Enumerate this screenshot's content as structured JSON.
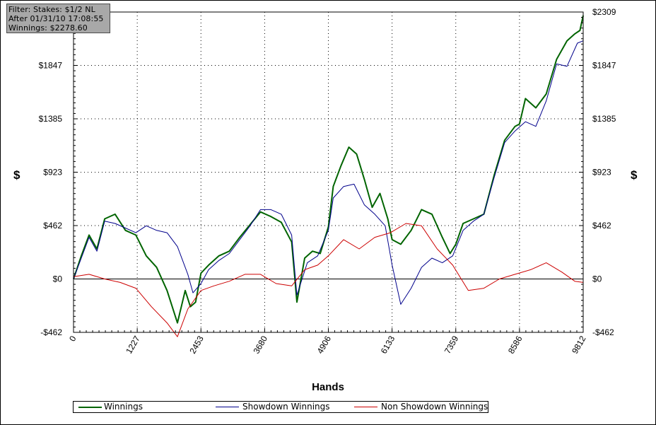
{
  "filter_box": {
    "line1": "Filter: Stakes: $1/2 NL",
    "line2": "After 01/31/10 17:08:55",
    "line3": "Winnings: $2278.60"
  },
  "chart_data": {
    "type": "line",
    "title": "",
    "xlabel": "Hands",
    "ylabel": "$",
    "xlim": [
      0,
      9812
    ],
    "ylim": [
      -462,
      2309
    ],
    "x_ticks": [
      0,
      1227,
      2453,
      3680,
      4906,
      6133,
      7359,
      8586,
      9812
    ],
    "x_tick_labels": [
      "0",
      "1227",
      "2453",
      "3680",
      "4906",
      "6133",
      "7359",
      "8586",
      "9812"
    ],
    "y_ticks": [
      -462,
      0,
      462,
      923,
      1385,
      1847,
      2309
    ],
    "y_tick_labels": [
      "-$462",
      "$0",
      "$462",
      "$923",
      "$1385",
      "$1847",
      "$2309"
    ],
    "grid": true,
    "legend_position": "bottom",
    "series": [
      {
        "name": "Winnings",
        "color": "#006400",
        "points": [
          [
            0,
            0
          ],
          [
            150,
            200
          ],
          [
            300,
            380
          ],
          [
            450,
            260
          ],
          [
            600,
            520
          ],
          [
            800,
            560
          ],
          [
            1000,
            420
          ],
          [
            1200,
            380
          ],
          [
            1400,
            200
          ],
          [
            1600,
            100
          ],
          [
            1800,
            -100
          ],
          [
            2000,
            -380
          ],
          [
            2150,
            -100
          ],
          [
            2250,
            -240
          ],
          [
            2350,
            -200
          ],
          [
            2453,
            50
          ],
          [
            2600,
            120
          ],
          [
            2800,
            200
          ],
          [
            3000,
            240
          ],
          [
            3200,
            360
          ],
          [
            3400,
            470
          ],
          [
            3600,
            580
          ],
          [
            3800,
            540
          ],
          [
            4000,
            490
          ],
          [
            4200,
            320
          ],
          [
            4300,
            -200
          ],
          [
            4450,
            180
          ],
          [
            4600,
            240
          ],
          [
            4750,
            220
          ],
          [
            4906,
            450
          ],
          [
            5000,
            800
          ],
          [
            5150,
            980
          ],
          [
            5300,
            1140
          ],
          [
            5450,
            1080
          ],
          [
            5600,
            860
          ],
          [
            5750,
            620
          ],
          [
            5900,
            740
          ],
          [
            6050,
            520
          ],
          [
            6133,
            340
          ],
          [
            6300,
            300
          ],
          [
            6500,
            420
          ],
          [
            6700,
            600
          ],
          [
            6900,
            560
          ],
          [
            7100,
            360
          ],
          [
            7250,
            220
          ],
          [
            7359,
            300
          ],
          [
            7500,
            480
          ],
          [
            7700,
            520
          ],
          [
            7900,
            560
          ],
          [
            8100,
            900
          ],
          [
            8300,
            1200
          ],
          [
            8500,
            1320
          ],
          [
            8586,
            1340
          ],
          [
            8700,
            1560
          ],
          [
            8900,
            1480
          ],
          [
            9100,
            1600
          ],
          [
            9300,
            1900
          ],
          [
            9500,
            2060
          ],
          [
            9650,
            2120
          ],
          [
            9750,
            2150
          ],
          [
            9812,
            2278.6
          ]
        ]
      },
      {
        "name": "Showdown Winnings",
        "color": "#00008b",
        "points": [
          [
            0,
            0
          ],
          [
            150,
            180
          ],
          [
            300,
            360
          ],
          [
            450,
            240
          ],
          [
            600,
            500
          ],
          [
            800,
            480
          ],
          [
            1000,
            440
          ],
          [
            1200,
            400
          ],
          [
            1400,
            460
          ],
          [
            1600,
            420
          ],
          [
            1800,
            400
          ],
          [
            2000,
            280
          ],
          [
            2200,
            40
          ],
          [
            2300,
            -120
          ],
          [
            2453,
            -40
          ],
          [
            2600,
            80
          ],
          [
            2800,
            160
          ],
          [
            3000,
            220
          ],
          [
            3200,
            340
          ],
          [
            3400,
            460
          ],
          [
            3600,
            600
          ],
          [
            3800,
            600
          ],
          [
            4000,
            560
          ],
          [
            4200,
            380
          ],
          [
            4300,
            -140
          ],
          [
            4500,
            140
          ],
          [
            4700,
            200
          ],
          [
            4906,
            420
          ],
          [
            5000,
            700
          ],
          [
            5200,
            800
          ],
          [
            5400,
            820
          ],
          [
            5600,
            640
          ],
          [
            5800,
            560
          ],
          [
            6000,
            460
          ],
          [
            6133,
            120
          ],
          [
            6300,
            -220
          ],
          [
            6500,
            -80
          ],
          [
            6700,
            100
          ],
          [
            6900,
            180
          ],
          [
            7100,
            140
          ],
          [
            7300,
            200
          ],
          [
            7500,
            420
          ],
          [
            7700,
            500
          ],
          [
            7900,
            560
          ],
          [
            8100,
            880
          ],
          [
            8300,
            1180
          ],
          [
            8500,
            1280
          ],
          [
            8700,
            1360
          ],
          [
            8900,
            1320
          ],
          [
            9100,
            1540
          ],
          [
            9300,
            1860
          ],
          [
            9500,
            1840
          ],
          [
            9700,
            2040
          ],
          [
            9812,
            2060
          ]
        ]
      },
      {
        "name": "Non Showdown Winnings",
        "color": "#cc0000",
        "points": [
          [
            0,
            20
          ],
          [
            300,
            40
          ],
          [
            600,
            0
          ],
          [
            900,
            -30
          ],
          [
            1200,
            -80
          ],
          [
            1500,
            -240
          ],
          [
            1800,
            -380
          ],
          [
            2000,
            -500
          ],
          [
            2200,
            -260
          ],
          [
            2453,
            -100
          ],
          [
            2700,
            -60
          ],
          [
            3000,
            -20
          ],
          [
            3300,
            40
          ],
          [
            3600,
            40
          ],
          [
            3900,
            -40
          ],
          [
            4200,
            -60
          ],
          [
            4450,
            80
          ],
          [
            4700,
            120
          ],
          [
            4906,
            200
          ],
          [
            5200,
            340
          ],
          [
            5500,
            260
          ],
          [
            5800,
            360
          ],
          [
            6100,
            400
          ],
          [
            6400,
            480
          ],
          [
            6700,
            460
          ],
          [
            7000,
            260
          ],
          [
            7300,
            120
          ],
          [
            7600,
            -100
          ],
          [
            7900,
            -80
          ],
          [
            8200,
            0
          ],
          [
            8500,
            40
          ],
          [
            8800,
            80
          ],
          [
            9100,
            140
          ],
          [
            9400,
            60
          ],
          [
            9650,
            -20
          ],
          [
            9812,
            -30
          ]
        ]
      }
    ]
  },
  "legend": {
    "items": [
      "Winnings",
      "Showdown Winnings",
      "Non Showdown Winnings"
    ]
  }
}
